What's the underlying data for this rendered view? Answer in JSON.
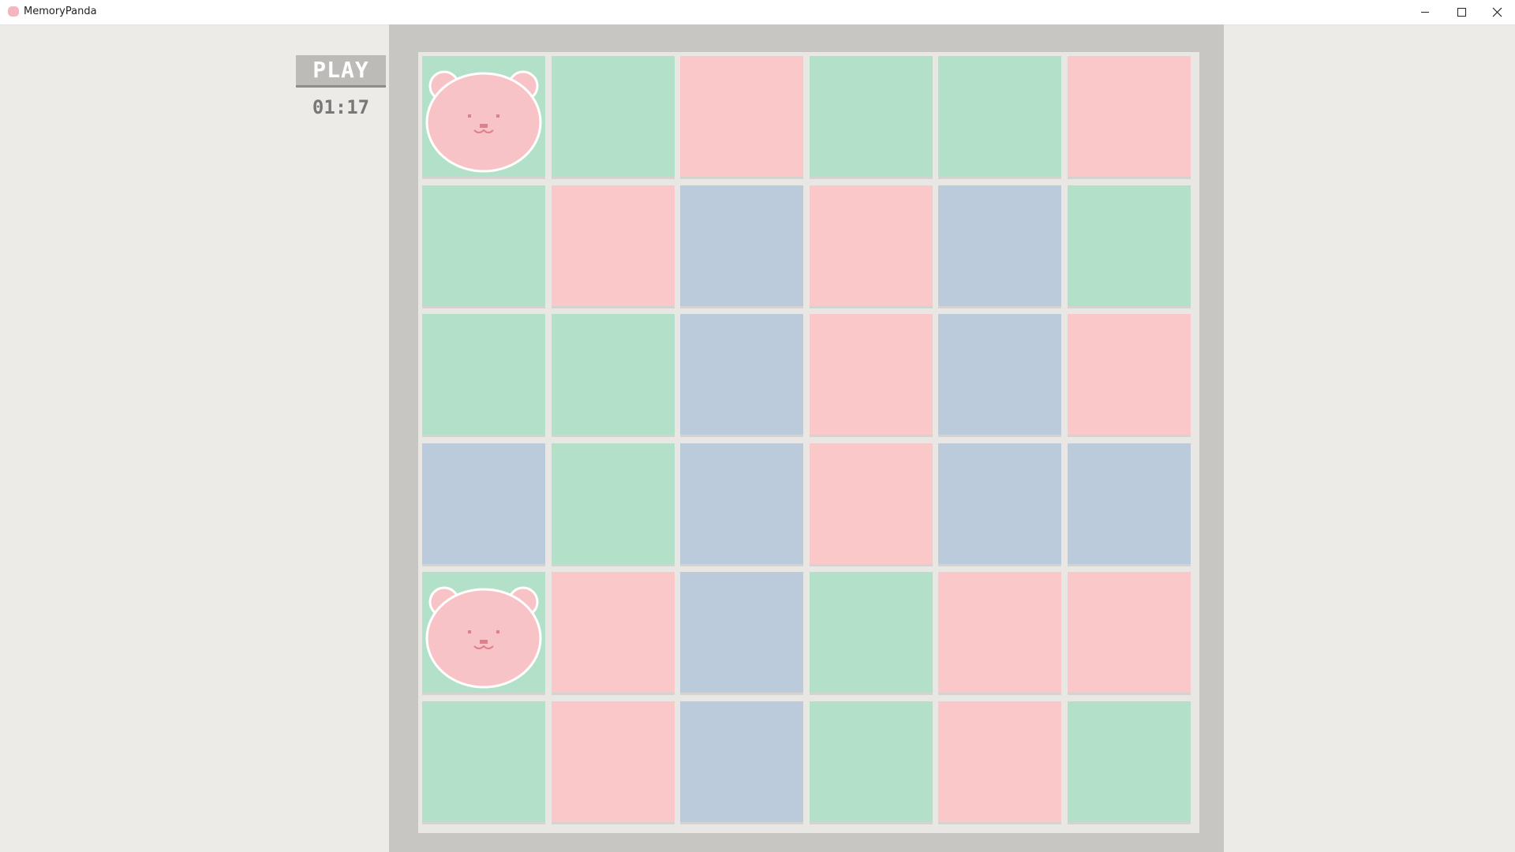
{
  "window": {
    "title": "MemoryPanda"
  },
  "controls": {
    "play": "PLAY",
    "timer": "01:17"
  },
  "board": {
    "colors": {
      "green": "#b3e0c8",
      "pink": "#fac8c8",
      "blue": "#bccbdb",
      "bear": "#b3e0c8"
    },
    "tiles": [
      [
        "bear",
        "green",
        "pink",
        "green",
        "green",
        "pink"
      ],
      [
        "green",
        "pink",
        "blue",
        "pink",
        "blue",
        "green"
      ],
      [
        "green",
        "green",
        "blue",
        "pink",
        "blue",
        "pink"
      ],
      [
        "blue",
        "green",
        "blue",
        "pink",
        "blue",
        "blue"
      ],
      [
        "bear",
        "pink",
        "blue",
        "green",
        "pink",
        "pink"
      ],
      [
        "green",
        "pink",
        "blue",
        "green",
        "pink",
        "green"
      ]
    ]
  }
}
